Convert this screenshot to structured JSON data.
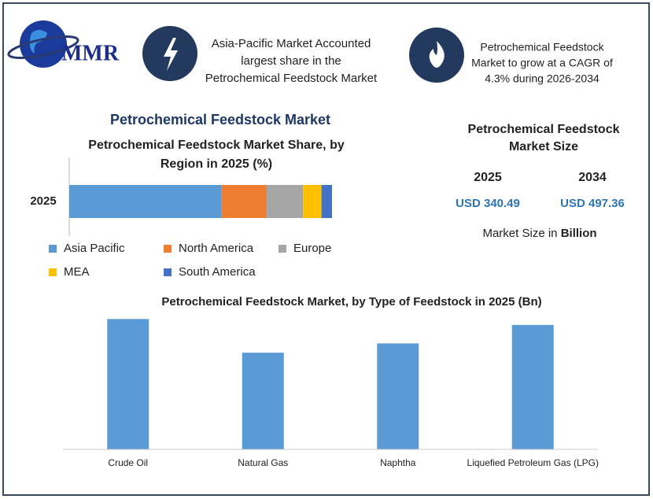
{
  "header": {
    "logo": "MMR",
    "highlights": [
      {
        "lines": [
          "Asia-Pacific Market Accounted",
          "largest share in the",
          "Petrochemical Feedstock Market"
        ]
      },
      {
        "lines": [
          "Petrochemical Feedstock",
          "Market to grow at a CAGR of",
          "4.3% during 2026-2034"
        ]
      }
    ]
  },
  "main_title": "Petrochemical Feedstock Market",
  "market_size": {
    "title_lines": [
      "Petrochemical Feedstock",
      "Market Size"
    ],
    "years": [
      "2025",
      "2034"
    ],
    "values": [
      "USD 340.49",
      "USD 497.36"
    ],
    "unit_note": "Market Size in",
    "unit_bold": "Billion"
  },
  "chart_data": [
    {
      "type": "stacked-bar-horizontal",
      "title_lines": [
        "Petrochemical Feedstock Market Share, by",
        "Region in 2025 (%)"
      ],
      "categories": [
        "2025"
      ],
      "xlim": [
        0,
        100
      ],
      "legend": "bottom",
      "series": [
        {
          "name": "Asia Pacific",
          "color": "#5b9bd5",
          "values": [
            58
          ]
        },
        {
          "name": "North America",
          "color": "#ed7d31",
          "values": [
            17
          ]
        },
        {
          "name": "Europe",
          "color": "#a5a5a5",
          "values": [
            14
          ]
        },
        {
          "name": "MEA",
          "color": "#ffc000",
          "values": [
            7
          ]
        },
        {
          "name": "South America",
          "color": "#4472c4",
          "values": [
            4
          ]
        }
      ]
    },
    {
      "type": "bar",
      "title": "Petrochemical Feedstock Market, by Type of Feedstock in 2025 (Bn)",
      "categories": [
        "Crude Oil",
        "Natural Gas",
        "Naphtha",
        "Liquefied Petroleum Gas (LPG)"
      ],
      "values": [
        155,
        115,
        126,
        148
      ],
      "color": "#5b9bd5",
      "ylim": [
        0,
        160
      ]
    }
  ]
}
